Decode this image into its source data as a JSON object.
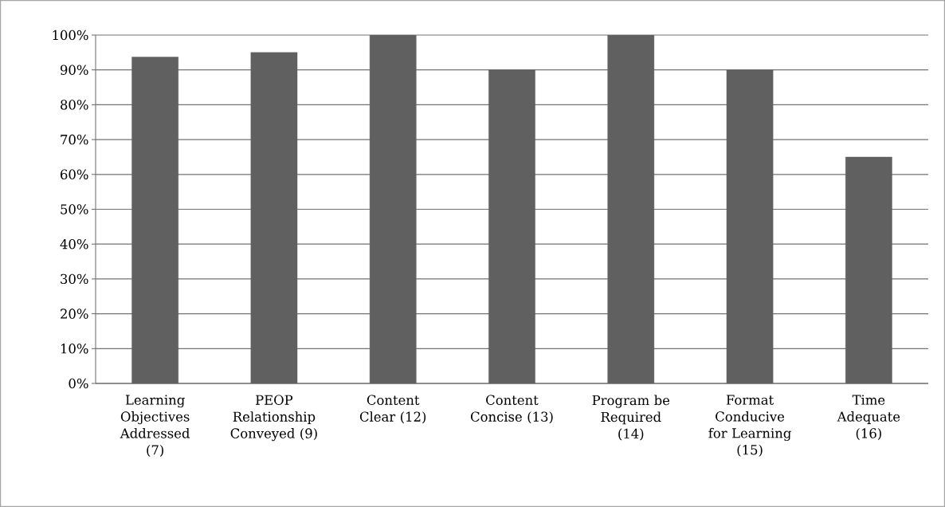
{
  "chart_data": {
    "type": "bar",
    "categories": [
      "Learning Objectives Addressed (7)",
      "PEOP Relationship Conveyed (9)",
      "Content Clear (12)",
      "Content Concise (13)",
      "Program be Required (14)",
      "Format Conducive for Learning (15)",
      "Time Adequate (16)"
    ],
    "values": [
      93.7,
      95,
      100,
      90,
      100,
      90,
      65
    ],
    "color": "#606060",
    "ylim": [
      0,
      100
    ],
    "yticks": [
      {
        "value": 0,
        "label": "0%"
      },
      {
        "value": 10,
        "label": "10%"
      },
      {
        "value": 20,
        "label": "20%"
      },
      {
        "value": 30,
        "label": "30%"
      },
      {
        "value": 40,
        "label": "40%"
      },
      {
        "value": 50,
        "label": "50%"
      },
      {
        "value": 60,
        "label": "60%"
      },
      {
        "value": 70,
        "label": "70%"
      },
      {
        "value": 80,
        "label": "80%"
      },
      {
        "value": 90,
        "label": "90%"
      },
      {
        "value": 100,
        "label": "100%"
      }
    ],
    "grid": "y"
  }
}
